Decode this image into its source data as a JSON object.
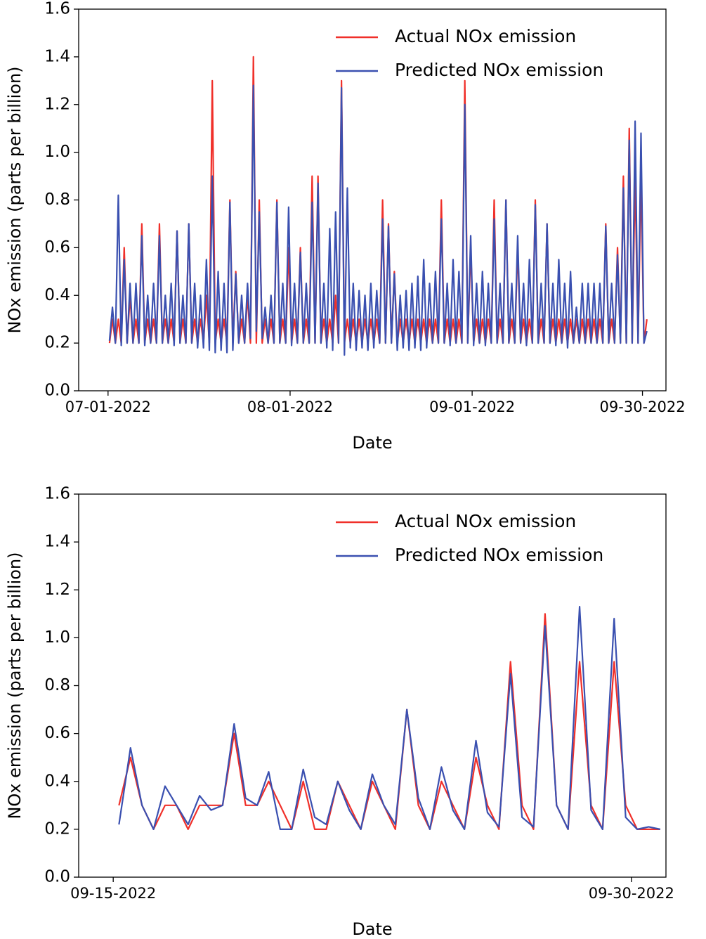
{
  "chart_data": [
    {
      "type": "line",
      "xlabel": "Date",
      "ylabel": "NOx emission (parts per billion)",
      "legend": "upper right",
      "grid": false,
      "xlim": [
        "06-26-2022",
        "10-04-2022"
      ],
      "xticks": [
        "07-01-2022",
        "08-01-2022",
        "09-01-2022",
        "09-30-2022"
      ],
      "ylim": [
        0,
        1.6
      ],
      "yticks": [
        {
          "value": 0,
          "label": "0.0"
        },
        0.2,
        0.4,
        0.6,
        0.8,
        {
          "value": 1,
          "label": "1.0"
        },
        1.2,
        1.4,
        1.6
      ],
      "x": [
        "07-01-2022",
        "07-01-2022",
        "07-02-2022",
        "07-02-2022",
        "07-03-2022",
        "07-03-2022",
        "07-04-2022",
        "07-04-2022",
        "07-05-2022",
        "07-05-2022",
        "07-06-2022",
        "07-06-2022",
        "07-07-2022",
        "07-07-2022",
        "07-08-2022",
        "07-08-2022",
        "07-09-2022",
        "07-09-2022",
        "07-10-2022",
        "07-10-2022",
        "07-11-2022",
        "07-11-2022",
        "07-12-2022",
        "07-12-2022",
        "07-13-2022",
        "07-13-2022",
        "07-14-2022",
        "07-14-2022",
        "07-15-2022",
        "07-15-2022",
        "07-16-2022",
        "07-16-2022",
        "07-17-2022",
        "07-17-2022",
        "07-18-2022",
        "07-18-2022",
        "07-19-2022",
        "07-19-2022",
        "07-20-2022",
        "07-20-2022",
        "07-21-2022",
        "07-21-2022",
        "07-22-2022",
        "07-22-2022",
        "07-23-2022",
        "07-23-2022",
        "07-24-2022",
        "07-24-2022",
        "07-25-2022",
        "07-25-2022",
        "07-26-2022",
        "07-26-2022",
        "07-27-2022",
        "07-27-2022",
        "07-28-2022",
        "07-28-2022",
        "07-29-2022",
        "07-29-2022",
        "07-30-2022",
        "07-30-2022",
        "07-31-2022",
        "07-31-2022",
        "08-01-2022",
        "08-01-2022",
        "08-02-2022",
        "08-02-2022",
        "08-03-2022",
        "08-03-2022",
        "08-04-2022",
        "08-04-2022",
        "08-05-2022",
        "08-05-2022",
        "08-06-2022",
        "08-06-2022",
        "08-07-2022",
        "08-07-2022",
        "08-08-2022",
        "08-08-2022",
        "08-09-2022",
        "08-09-2022",
        "08-10-2022",
        "08-10-2022",
        "08-11-2022",
        "08-11-2022",
        "08-12-2022",
        "08-12-2022",
        "08-13-2022",
        "08-13-2022",
        "08-14-2022",
        "08-14-2022",
        "08-15-2022",
        "08-15-2022",
        "08-16-2022",
        "08-16-2022",
        "08-17-2022",
        "08-17-2022",
        "08-18-2022",
        "08-18-2022",
        "08-19-2022",
        "08-19-2022",
        "08-20-2022",
        "08-20-2022",
        "08-21-2022",
        "08-21-2022",
        "08-22-2022",
        "08-22-2022",
        "08-23-2022",
        "08-23-2022",
        "08-24-2022",
        "08-24-2022",
        "08-25-2022",
        "08-25-2022",
        "08-26-2022",
        "08-26-2022",
        "08-27-2022",
        "08-27-2022",
        "08-28-2022",
        "08-28-2022",
        "08-29-2022",
        "08-29-2022",
        "08-30-2022",
        "08-30-2022",
        "08-31-2022",
        "08-31-2022",
        "09-01-2022",
        "09-01-2022",
        "09-02-2022",
        "09-02-2022",
        "09-03-2022",
        "09-03-2022",
        "09-04-2022",
        "09-04-2022",
        "09-05-2022",
        "09-05-2022",
        "09-06-2022",
        "09-06-2022",
        "09-07-2022",
        "09-07-2022",
        "09-08-2022",
        "09-08-2022",
        "09-09-2022",
        "09-09-2022",
        "09-10-2022",
        "09-10-2022",
        "09-11-2022",
        "09-11-2022",
        "09-12-2022",
        "09-12-2022",
        "09-13-2022",
        "09-13-2022",
        "09-14-2022",
        "09-14-2022",
        "09-15-2022",
        "09-15-2022",
        "09-16-2022",
        "09-16-2022",
        "09-17-2022",
        "09-17-2022",
        "09-18-2022",
        "09-18-2022",
        "09-19-2022",
        "09-19-2022",
        "09-20-2022",
        "09-20-2022",
        "09-21-2022",
        "09-21-2022",
        "09-22-2022",
        "09-22-2022",
        "09-23-2022",
        "09-23-2022",
        "09-24-2022",
        "09-24-2022",
        "09-25-2022",
        "09-25-2022",
        "09-26-2022",
        "09-26-2022",
        "09-27-2022",
        "09-27-2022",
        "09-28-2022",
        "09-28-2022",
        "09-29-2022",
        "09-29-2022",
        "09-30-2022",
        "09-30-2022"
      ],
      "series": [
        {
          "name": "Actual NOx emission",
          "color": "#f0302a",
          "values": [
            0.2,
            0.3,
            0.2,
            0.3,
            0.2,
            0.6,
            0.2,
            0.4,
            0.2,
            0.3,
            0.2,
            0.7,
            0.2,
            0.3,
            0.2,
            0.3,
            0.2,
            0.7,
            0.2,
            0.3,
            0.2,
            0.3,
            0.2,
            0.67,
            0.2,
            0.3,
            0.2,
            0.7,
            0.2,
            0.3,
            0.2,
            0.3,
            0.2,
            0.4,
            0.2,
            1.3,
            0.2,
            0.3,
            0.2,
            0.3,
            0.2,
            0.8,
            0.2,
            0.5,
            0.2,
            0.3,
            0.2,
            0.4,
            0.2,
            1.4,
            0.2,
            0.8,
            0.2,
            0.3,
            0.2,
            0.3,
            0.2,
            0.8,
            0.2,
            0.3,
            0.2,
            0.6,
            0.2,
            0.3,
            0.2,
            0.6,
            0.2,
            0.3,
            0.2,
            0.9,
            0.2,
            0.9,
            0.2,
            0.3,
            0.2,
            0.3,
            0.2,
            0.4,
            0.2,
            1.3,
            0.2,
            0.3,
            0.2,
            0.3,
            0.2,
            0.3,
            0.2,
            0.3,
            0.2,
            0.3,
            0.2,
            0.3,
            0.2,
            0.8,
            0.2,
            0.7,
            0.2,
            0.5,
            0.2,
            0.3,
            0.2,
            0.3,
            0.2,
            0.3,
            0.2,
            0.3,
            0.2,
            0.3,
            0.2,
            0.3,
            0.2,
            0.3,
            0.2,
            0.8,
            0.2,
            0.3,
            0.2,
            0.3,
            0.2,
            0.3,
            0.2,
            1.3,
            0.2,
            0.6,
            0.2,
            0.3,
            0.2,
            0.3,
            0.2,
            0.3,
            0.2,
            0.8,
            0.2,
            0.3,
            0.2,
            0.8,
            0.2,
            0.3,
            0.2,
            0.6,
            0.2,
            0.3,
            0.2,
            0.3,
            0.2,
            0.8,
            0.2,
            0.3,
            0.2,
            0.7,
            0.2,
            0.3,
            0.2,
            0.3,
            0.2,
            0.3,
            0.2,
            0.3,
            0.2,
            0.3,
            0.2,
            0.3,
            0.2,
            0.3,
            0.2,
            0.3,
            0.2,
            0.3,
            0.2,
            0.7,
            0.2,
            0.3,
            0.2,
            0.6,
            0.2,
            0.9,
            0.2,
            1.1,
            0.2,
            0.9,
            0.2,
            0.9,
            0.2,
            0.3
          ]
        },
        {
          "name": "Predicted NOx emission",
          "color": "#3a50b0",
          "values": [
            0.21,
            0.35,
            0.2,
            0.82,
            0.19,
            0.55,
            0.2,
            0.45,
            0.2,
            0.45,
            0.2,
            0.65,
            0.19,
            0.4,
            0.2,
            0.45,
            0.2,
            0.65,
            0.2,
            0.4,
            0.2,
            0.45,
            0.19,
            0.67,
            0.2,
            0.4,
            0.2,
            0.7,
            0.2,
            0.45,
            0.18,
            0.4,
            0.18,
            0.55,
            0.17,
            0.9,
            0.16,
            0.5,
            0.17,
            0.45,
            0.16,
            0.79,
            0.17,
            0.49,
            0.2,
            0.4,
            0.2,
            0.45,
            0.22,
            1.28,
            0.25,
            0.75,
            0.22,
            0.35,
            0.2,
            0.4,
            0.2,
            0.79,
            0.2,
            0.45,
            0.2,
            0.77,
            0.19,
            0.45,
            0.2,
            0.58,
            0.2,
            0.45,
            0.2,
            0.79,
            0.2,
            0.87,
            0.2,
            0.45,
            0.18,
            0.68,
            0.17,
            0.75,
            0.2,
            1.27,
            0.15,
            0.85,
            0.18,
            0.45,
            0.17,
            0.42,
            0.18,
            0.4,
            0.17,
            0.45,
            0.18,
            0.42,
            0.2,
            0.72,
            0.2,
            0.69,
            0.2,
            0.49,
            0.17,
            0.4,
            0.18,
            0.42,
            0.17,
            0.45,
            0.18,
            0.48,
            0.17,
            0.55,
            0.18,
            0.45,
            0.2,
            0.5,
            0.2,
            0.72,
            0.2,
            0.45,
            0.19,
            0.55,
            0.2,
            0.5,
            0.2,
            1.2,
            0.2,
            0.65,
            0.19,
            0.45,
            0.2,
            0.5,
            0.19,
            0.45,
            0.2,
            0.72,
            0.2,
            0.45,
            0.2,
            0.8,
            0.2,
            0.45,
            0.2,
            0.65,
            0.2,
            0.45,
            0.19,
            0.55,
            0.2,
            0.78,
            0.2,
            0.45,
            0.2,
            0.7,
            0.2,
            0.45,
            0.19,
            0.55,
            0.2,
            0.45,
            0.18,
            0.5,
            0.2,
            0.35,
            0.2,
            0.45,
            0.2,
            0.45,
            0.2,
            0.45,
            0.2,
            0.45,
            0.2,
            0.69,
            0.2,
            0.45,
            0.2,
            0.57,
            0.2,
            0.85,
            0.2,
            1.05,
            0.2,
            1.13,
            0.2,
            1.08,
            0.2,
            0.25
          ]
        }
      ]
    },
    {
      "type": "line",
      "xlabel": "Date",
      "ylabel": "NOx emission (parts per billion)",
      "legend": "upper right",
      "grid": false,
      "xlim": [
        "09-14-2022",
        "10-01-2022"
      ],
      "xticks": [
        "09-15-2022",
        "09-30-2022"
      ],
      "ylim": [
        0,
        1.6
      ],
      "yticks": [
        {
          "value": 0,
          "label": "0.0"
        },
        0.2,
        0.4,
        0.6,
        0.8,
        {
          "value": 1,
          "label": "1.0"
        },
        1.2,
        1.4,
        1.6
      ],
      "x": [
        "09-15-2022",
        "09-15-2022",
        "09-15-2022",
        "09-16-2022",
        "09-16-2022",
        "09-16-2022",
        "09-17-2022",
        "09-17-2022",
        "09-17-2022",
        "09-18-2022",
        "09-18-2022",
        "09-18-2022",
        "09-19-2022",
        "09-19-2022",
        "09-19-2022",
        "09-20-2022",
        "09-20-2022",
        "09-20-2022",
        "09-21-2022",
        "09-21-2022",
        "09-21-2022",
        "09-22-2022",
        "09-22-2022",
        "09-22-2022",
        "09-23-2022",
        "09-23-2022",
        "09-23-2022",
        "09-24-2022",
        "09-24-2022",
        "09-24-2022",
        "09-25-2022",
        "09-25-2022",
        "09-25-2022",
        "09-26-2022",
        "09-26-2022",
        "09-26-2022",
        "09-27-2022",
        "09-27-2022",
        "09-27-2022",
        "09-28-2022",
        "09-28-2022",
        "09-28-2022",
        "09-29-2022",
        "09-29-2022",
        "09-29-2022",
        "09-30-2022",
        "09-30-2022",
        "09-30-2022"
      ],
      "series": [
        {
          "name": "Actual NOx emission",
          "color": "#f0302a",
          "values": [
            0.3,
            0.5,
            0.3,
            0.2,
            0.3,
            0.3,
            0.2,
            0.3,
            0.3,
            0.3,
            0.6,
            0.3,
            0.3,
            0.4,
            0.3,
            0.2,
            0.4,
            0.2,
            0.2,
            0.4,
            0.3,
            0.2,
            0.4,
            0.3,
            0.2,
            0.7,
            0.3,
            0.2,
            0.4,
            0.3,
            0.2,
            0.5,
            0.3,
            0.2,
            0.9,
            0.3,
            0.2,
            1.1,
            0.3,
            0.2,
            0.9,
            0.3,
            0.2,
            0.9,
            0.3,
            0.2,
            0.2,
            0.2
          ]
        },
        {
          "name": "Predicted NOx emission",
          "color": "#3a50b0",
          "values": [
            0.22,
            0.54,
            0.3,
            0.2,
            0.38,
            0.3,
            0.22,
            0.34,
            0.28,
            0.3,
            0.64,
            0.33,
            0.3,
            0.44,
            0.2,
            0.2,
            0.45,
            0.25,
            0.22,
            0.4,
            0.28,
            0.2,
            0.43,
            0.3,
            0.22,
            0.7,
            0.33,
            0.2,
            0.46,
            0.28,
            0.2,
            0.57,
            0.27,
            0.21,
            0.85,
            0.25,
            0.21,
            1.05,
            0.3,
            0.2,
            1.13,
            0.28,
            0.2,
            1.08,
            0.25,
            0.2,
            0.21,
            0.2
          ]
        }
      ]
    }
  ]
}
